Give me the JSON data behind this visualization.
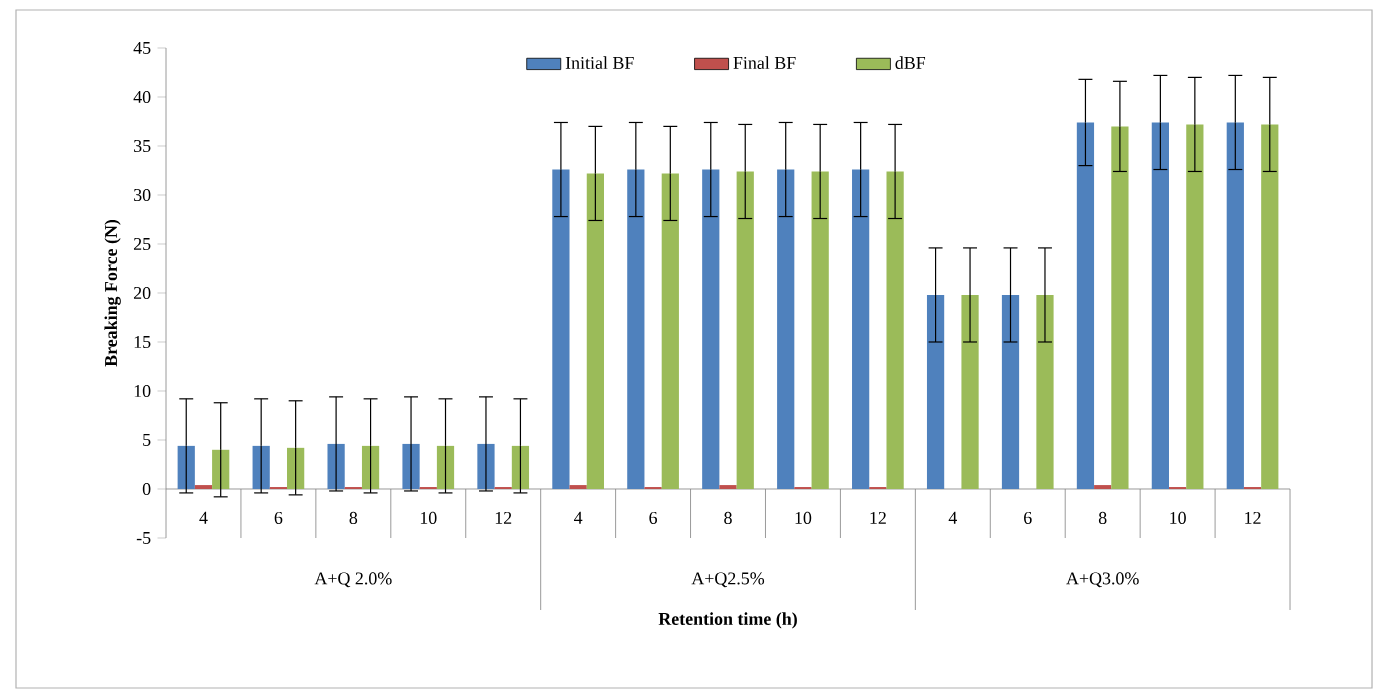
{
  "chart_data": {
    "type": "bar",
    "xlabel": "Retention time (h)",
    "ylabel": "Breaking Force (N)",
    "categories": [
      "4",
      "6",
      "8",
      "10",
      "12",
      "4",
      "6",
      "8",
      "10",
      "12",
      "4",
      "6",
      "8",
      "10",
      "12"
    ],
    "series": [
      {
        "name": "Initial BF",
        "color": "#4f81bd",
        "values": [
          4.4,
          4.4,
          4.6,
          4.6,
          4.6,
          32.6,
          32.6,
          32.6,
          32.6,
          32.6,
          19.8,
          19.8,
          37.4,
          37.4,
          37.4
        ],
        "errors": [
          4.8,
          4.8,
          4.8,
          4.8,
          4.8,
          4.8,
          4.8,
          4.8,
          4.8,
          4.8,
          4.8,
          4.8,
          4.4,
          4.8,
          4.8
        ]
      },
      {
        "name": "Final BF",
        "color": "#c0504d",
        "values": [
          0.4,
          0.2,
          0.2,
          0.2,
          0.2,
          0.4,
          0.2,
          0.4,
          0.2,
          0.2,
          0,
          0,
          0.4,
          0.2,
          0.2
        ]
      },
      {
        "name": "dBF",
        "color": "#9bbb59",
        "values": [
          4.0,
          4.2,
          4.4,
          4.4,
          4.4,
          32.2,
          32.2,
          32.4,
          32.4,
          32.4,
          19.8,
          19.8,
          37.0,
          37.2,
          37.2
        ],
        "errors": [
          4.8,
          4.8,
          4.8,
          4.8,
          4.8,
          4.8,
          4.8,
          4.8,
          4.8,
          4.8,
          4.8,
          4.8,
          4.6,
          4.8,
          4.8
        ]
      }
    ],
    "annotations": [
      "A+Q 2.0%",
      "A+Q2.5%",
      "A+Q3.0%"
    ],
    "ylim": [
      -5,
      45
    ],
    "yticks": [
      -5,
      0,
      5,
      10,
      15,
      20,
      25,
      30,
      35,
      40,
      45
    ],
    "legend": "top",
    "grid": false
  }
}
